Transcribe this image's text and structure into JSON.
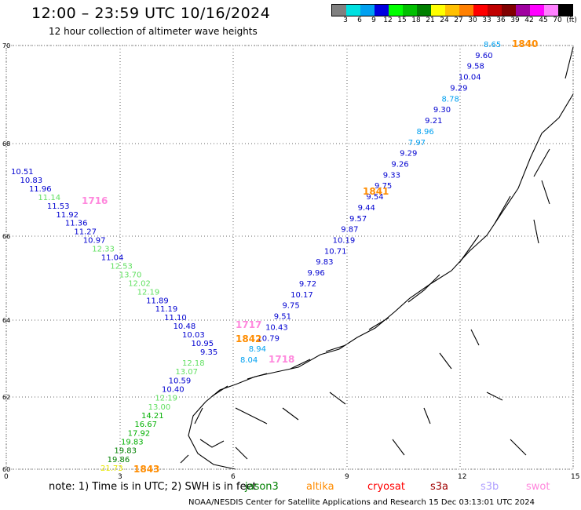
{
  "header": {
    "title": "12:00 – 23:59 UTC 10/16/2024",
    "subtitle": "12 hour collection of altimeter wave heights"
  },
  "colorbar": {
    "colors": [
      "#808080",
      "#00e0e0",
      "#00a0f0",
      "#0000e0",
      "#00ff00",
      "#00c000",
      "#008000",
      "#ffff00",
      "#ffc000",
      "#ff8000",
      "#ff0000",
      "#c00000",
      "#800000",
      "#a000a0",
      "#ff00ff",
      "#ff80ff",
      "#000000"
    ],
    "ticks": [
      "3",
      "6",
      "9",
      "12",
      "15",
      "18",
      "21",
      "24",
      "27",
      "30",
      "33",
      "36",
      "39",
      "42",
      "45",
      "70",
      "(ft)"
    ]
  },
  "axes": {
    "lat_labels": [
      "70",
      "68",
      "66",
      "64",
      "62",
      "60"
    ],
    "lon_labels": [
      "0",
      "3",
      "6",
      "9",
      "12",
      "15"
    ]
  },
  "passes": [
    {
      "id": "1840",
      "color": "#ff8c00"
    },
    {
      "id": "1841",
      "color": "#ff8c00"
    },
    {
      "id": "1842",
      "color": "#ff8c00"
    },
    {
      "id": "1843",
      "color": "#ff8c00"
    },
    {
      "id": "1716",
      "color": "#ff88dd"
    },
    {
      "id": "1717",
      "color": "#ff88dd"
    },
    {
      "id": "1718",
      "color": "#ff88dd"
    }
  ],
  "track_a": [
    {
      "v": "10.51",
      "c": "#0000d0"
    },
    {
      "v": "10.83",
      "c": "#0000d0"
    },
    {
      "v": "11.96",
      "c": "#0000d0"
    },
    {
      "v": "11.14",
      "c": "#60e060"
    },
    {
      "v": "11.53",
      "c": "#0000d0"
    },
    {
      "v": "11.92",
      "c": "#0000d0"
    },
    {
      "v": "11.36",
      "c": "#0000d0"
    },
    {
      "v": "11.27",
      "c": "#0000d0"
    },
    {
      "v": "10.97",
      "c": "#0000d0"
    },
    {
      "v": "12.33",
      "c": "#60e060"
    },
    {
      "v": "11.04",
      "c": "#0000d0"
    },
    {
      "v": "12.53",
      "c": "#60e060"
    },
    {
      "v": "13.70",
      "c": "#60e060"
    },
    {
      "v": "12.02",
      "c": "#60e060"
    },
    {
      "v": "12.19",
      "c": "#60e060"
    },
    {
      "v": "11.89",
      "c": "#0000d0"
    },
    {
      "v": "11.19",
      "c": "#0000d0"
    },
    {
      "v": "11.10",
      "c": "#0000d0"
    },
    {
      "v": "10.48",
      "c": "#0000d0"
    },
    {
      "v": "10.03",
      "c": "#0000d0"
    },
    {
      "v": "10.95",
      "c": "#0000d0"
    },
    {
      "v": "9.35",
      "c": "#0000d0"
    },
    {
      "v": "12.18",
      "c": "#60e060"
    },
    {
      "v": "13.07",
      "c": "#60e060"
    },
    {
      "v": "10.59",
      "c": "#0000d0"
    },
    {
      "v": "10.40",
      "c": "#0000d0"
    },
    {
      "v": "12.19",
      "c": "#60e060"
    },
    {
      "v": "13.00",
      "c": "#60e060"
    },
    {
      "v": "14.21",
      "c": "#00b000"
    },
    {
      "v": "16.67",
      "c": "#00b000"
    },
    {
      "v": "17.92",
      "c": "#00b000"
    },
    {
      "v": "19.83",
      "c": "#00b000"
    },
    {
      "v": "19.83",
      "c": "#008000"
    },
    {
      "v": "19.86",
      "c": "#008000"
    },
    {
      "v": "21.73",
      "c": "#e8e800"
    }
  ],
  "track_b": [
    {
      "v": "8.65",
      "c": "#00a0f0"
    },
    {
      "v": "9.60",
      "c": "#0000d0"
    },
    {
      "v": "9.58",
      "c": "#0000d0"
    },
    {
      "v": "10.04",
      "c": "#0000d0"
    },
    {
      "v": "9.29",
      "c": "#0000d0"
    },
    {
      "v": "8.78",
      "c": "#00a0f0"
    },
    {
      "v": "9.30",
      "c": "#0000d0"
    },
    {
      "v": "9.21",
      "c": "#0000d0"
    },
    {
      "v": "8.96",
      "c": "#00a0f0"
    },
    {
      "v": "7.97",
      "c": "#00a0f0"
    },
    {
      "v": "9.29",
      "c": "#0000d0"
    },
    {
      "v": "9.26",
      "c": "#0000d0"
    },
    {
      "v": "9.33",
      "c": "#0000d0"
    },
    {
      "v": "9.75",
      "c": "#0000d0"
    },
    {
      "v": "9.54",
      "c": "#0000d0"
    },
    {
      "v": "9.44",
      "c": "#0000d0"
    },
    {
      "v": "9.57",
      "c": "#0000d0"
    },
    {
      "v": "9.87",
      "c": "#0000d0"
    },
    {
      "v": "10.19",
      "c": "#0000d0"
    },
    {
      "v": "10.71",
      "c": "#0000d0"
    },
    {
      "v": "9.83",
      "c": "#0000d0"
    },
    {
      "v": "9.96",
      "c": "#0000d0"
    },
    {
      "v": "9.72",
      "c": "#0000d0"
    },
    {
      "v": "10.17",
      "c": "#0000d0"
    },
    {
      "v": "9.75",
      "c": "#0000d0"
    },
    {
      "v": "9.51",
      "c": "#0000d0"
    },
    {
      "v": "10.43",
      "c": "#0000d0"
    },
    {
      "v": "10.79",
      "c": "#0000d0"
    },
    {
      "v": "8.94",
      "c": "#00a0f0"
    },
    {
      "v": "8.04",
      "c": "#00a0f0"
    }
  ],
  "note": {
    "text": "note: 1) Time is in UTC; 2) SWH is in feet"
  },
  "legend": [
    {
      "label": "jason3",
      "color": "#008000"
    },
    {
      "label": "altika",
      "color": "#ff8c00"
    },
    {
      "label": "cryosat",
      "color": "#ff0000"
    },
    {
      "label": "s3a",
      "color": "#a00000"
    },
    {
      "label": "s3b",
      "color": "#b0a0ff"
    },
    {
      "label": "swot",
      "color": "#ff88dd"
    }
  ],
  "footer": {
    "text": "NOAA/NESDIS Center for Satellite Applications and Research    15 Dec 03:13:01 UTC 2024"
  }
}
